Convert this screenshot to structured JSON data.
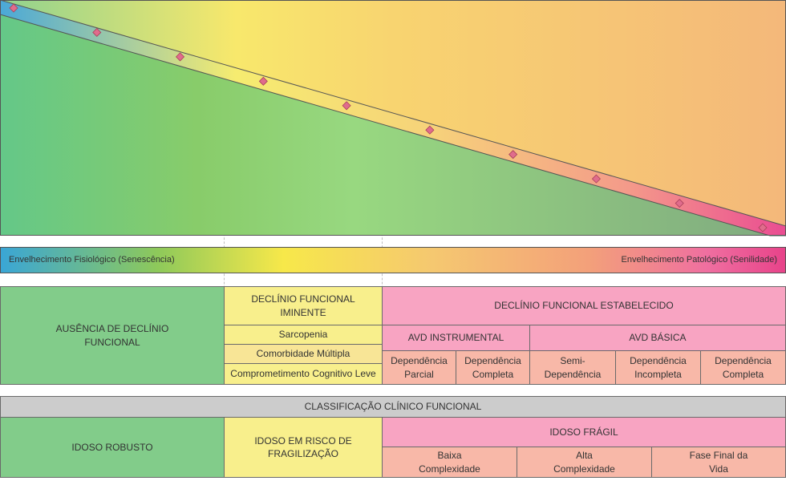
{
  "chart": {
    "marker_color": "#e06c8c",
    "marker_count": 10
  },
  "spectrum": {
    "left_label": "Envelhecimento Fisiológico (Senescência)",
    "right_label": "Envelhecimento Patológico (Senilidade)"
  },
  "functional": {
    "no_decline": "AUSÊNCIA DE DECLÍNIO FUNCIONAL",
    "imminent": {
      "title": "DECLÍNIO FUNCIONAL IMINENTE",
      "items": [
        "Sarcopenia",
        "Comorbidade Múltipla",
        "Comprometimento Cognitivo Leve"
      ]
    },
    "established": {
      "title": "DECLÍNIO FUNCIONAL ESTABELECIDO",
      "instrumental": {
        "title": "AVD INSTRUMENTAL",
        "items": [
          "Dependência Parcial",
          "Dependência Completa"
        ]
      },
      "basic": {
        "title": "AVD BÁSICA",
        "items": [
          "Semi-Dependência",
          "Dependência Incompleta",
          "Dependência Completa"
        ]
      }
    }
  },
  "classification": {
    "title": "CLASSIFICAÇÃO CLÍNICO FUNCIONAL",
    "robust": "IDOSO ROBUSTO",
    "at_risk": "IDOSO EM RISCO DE FRAGILIZAÇÃO",
    "frail": {
      "title": "IDOSO FRÁGIL",
      "items": [
        "Baixa Complexidade",
        "Alta Complexidade",
        "Fase Final da Vida"
      ]
    }
  }
}
